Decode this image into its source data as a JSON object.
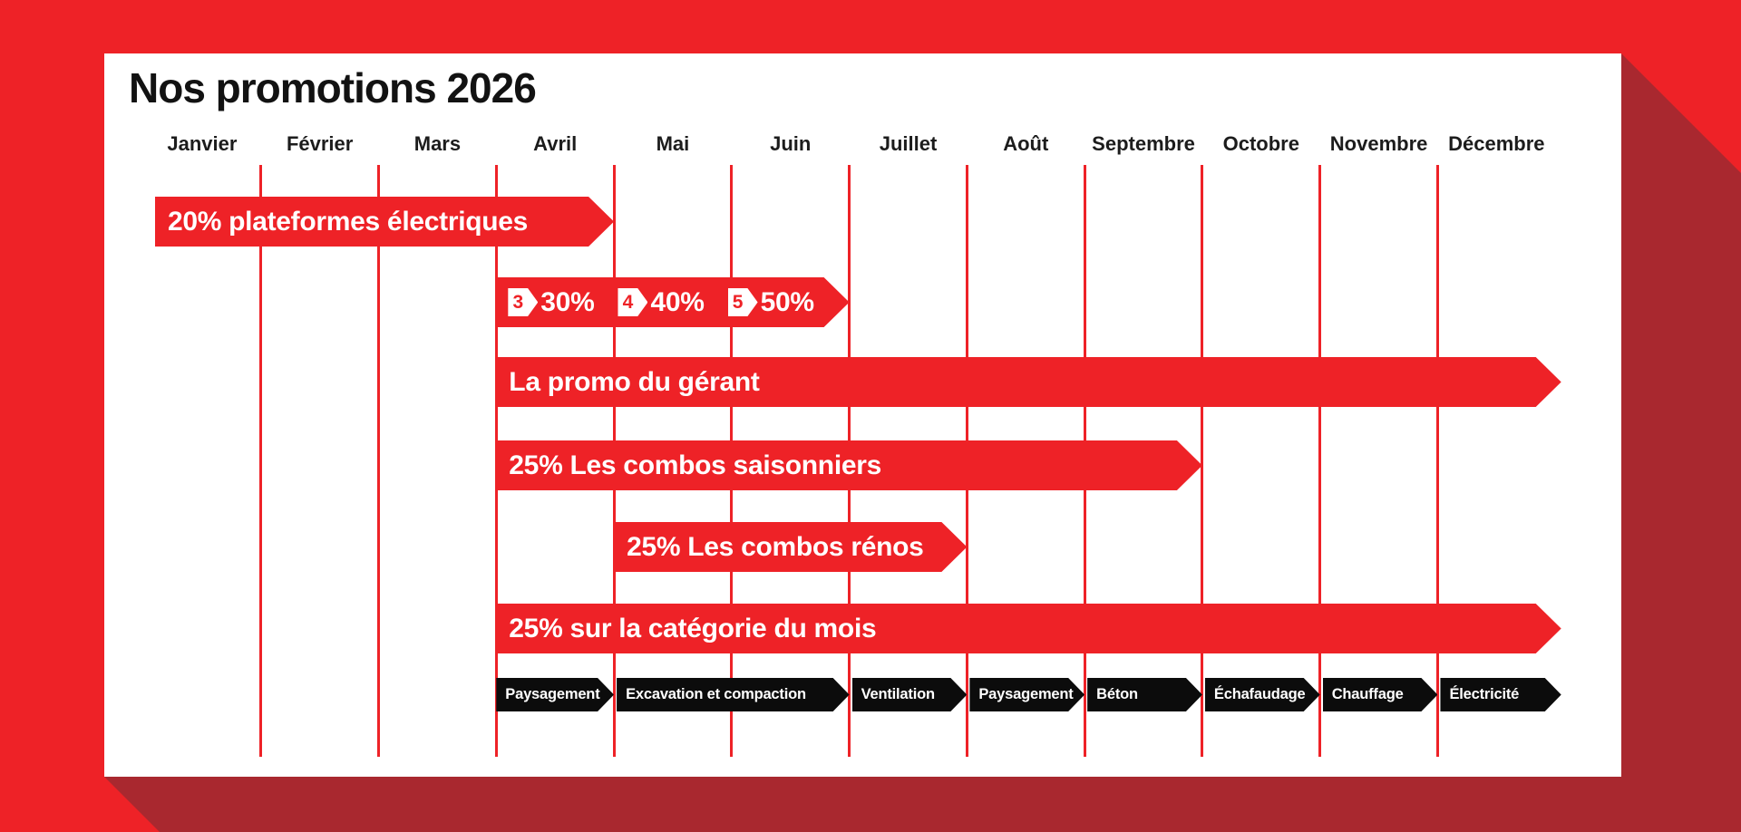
{
  "title": "Nos promotions 2026",
  "colors": {
    "accent_red": "#EE2227",
    "shadow_red": "#A9282F",
    "category_black": "#0C0C0C",
    "card_white": "#FFFFFF"
  },
  "chart_data": {
    "type": "gantt-timeline",
    "title": "Nos promotions 2026",
    "months": [
      "Janvier",
      "Février",
      "Mars",
      "Avril",
      "Mai",
      "Juin",
      "Juillet",
      "Août",
      "Septembre",
      "Octobre",
      "Novembre",
      "Décembre"
    ],
    "grid": "vertical red line at each month boundary (11 lines, after Janvier through Novembre)",
    "promotions": [
      {
        "label": "20% plateformes électriques",
        "from": 0.1,
        "to": 4,
        "period": "Janvier–Avril"
      },
      {
        "from": 3,
        "to": 6,
        "period": "Avril–Juin",
        "tiers": [
          {
            "badge": "3",
            "value": "30%"
          },
          {
            "badge": "4",
            "value": "40%"
          },
          {
            "badge": "5",
            "value": "50%"
          }
        ]
      },
      {
        "label": "La promo du gérant",
        "from": 3,
        "to": 12.05,
        "period": "Avril–Décembre"
      },
      {
        "label": "25% Les combos saisonniers",
        "from": 3,
        "to": 9,
        "period": "Avril–Septembre"
      },
      {
        "label": "25% Les combos rénos",
        "from": 4,
        "to": 7,
        "period": "Mai–Juillet"
      },
      {
        "label": "25% sur la catégorie du mois",
        "from": 3,
        "to": 12.05,
        "period": "Avril–Décembre"
      }
    ],
    "monthly_categories": [
      {
        "label": "Paysagement",
        "from": 3,
        "to": 4,
        "period": "Avril"
      },
      {
        "label": "Excavation et compaction",
        "from": 4,
        "to": 6,
        "period": "Mai–Juin"
      },
      {
        "label": "Ventilation",
        "from": 6,
        "to": 7,
        "period": "Juillet"
      },
      {
        "label": "Paysagement",
        "from": 7,
        "to": 8,
        "period": "Août"
      },
      {
        "label": "Béton",
        "from": 8,
        "to": 9,
        "period": "Septembre"
      },
      {
        "label": "Échafaudage",
        "from": 9,
        "to": 10,
        "period": "Octobre"
      },
      {
        "label": "Chauffage",
        "from": 10,
        "to": 11,
        "period": "Novembre"
      },
      {
        "label": "Électricité",
        "from": 11,
        "to": 12.05,
        "period": "Décembre"
      }
    ]
  }
}
